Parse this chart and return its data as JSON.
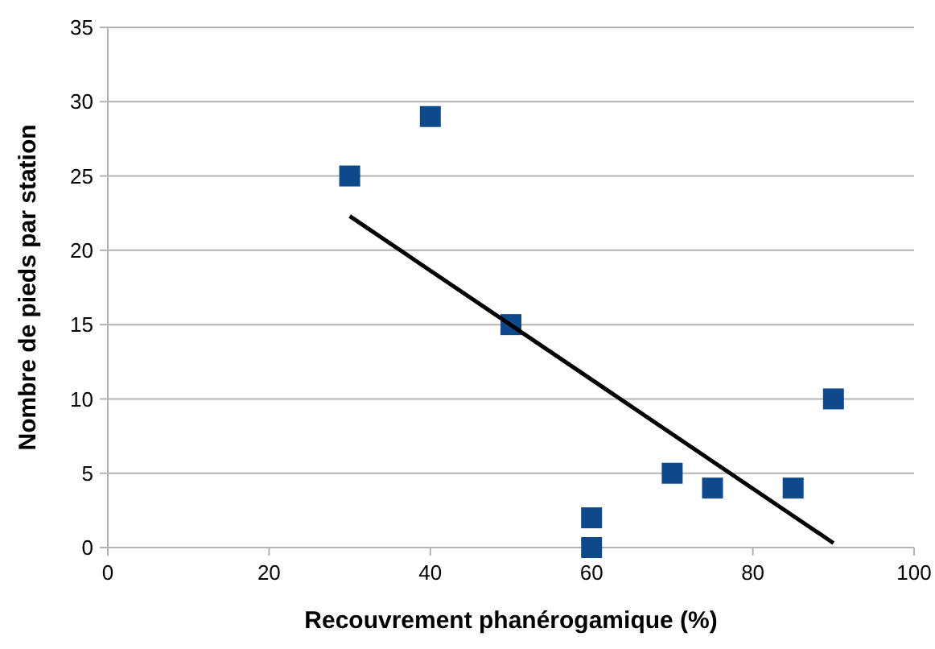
{
  "chart_data": {
    "type": "scatter",
    "xlabel": "Recouvrement phanérogamique (%)",
    "ylabel": "Nombre de pieds par station",
    "xlim": [
      0,
      100
    ],
    "xticks": [
      0,
      20,
      40,
      60,
      80,
      100
    ],
    "ylim": [
      0,
      35
    ],
    "yticks": [
      0,
      5,
      10,
      15,
      20,
      25,
      30,
      35
    ],
    "grid": "y",
    "marker": "square",
    "series": [
      {
        "color": "#0e4a8a",
        "x": [
          30,
          40,
          50,
          60,
          60,
          70,
          75,
          85,
          90
        ],
        "values": [
          25,
          29,
          15,
          2,
          0,
          5,
          4,
          4,
          10
        ]
      },
      {
        "type": "line",
        "color": "#000000",
        "x": [
          30,
          90
        ],
        "values": [
          22.3,
          0.3
        ],
        "marker": "none",
        "line_style": "solid"
      }
    ]
  }
}
